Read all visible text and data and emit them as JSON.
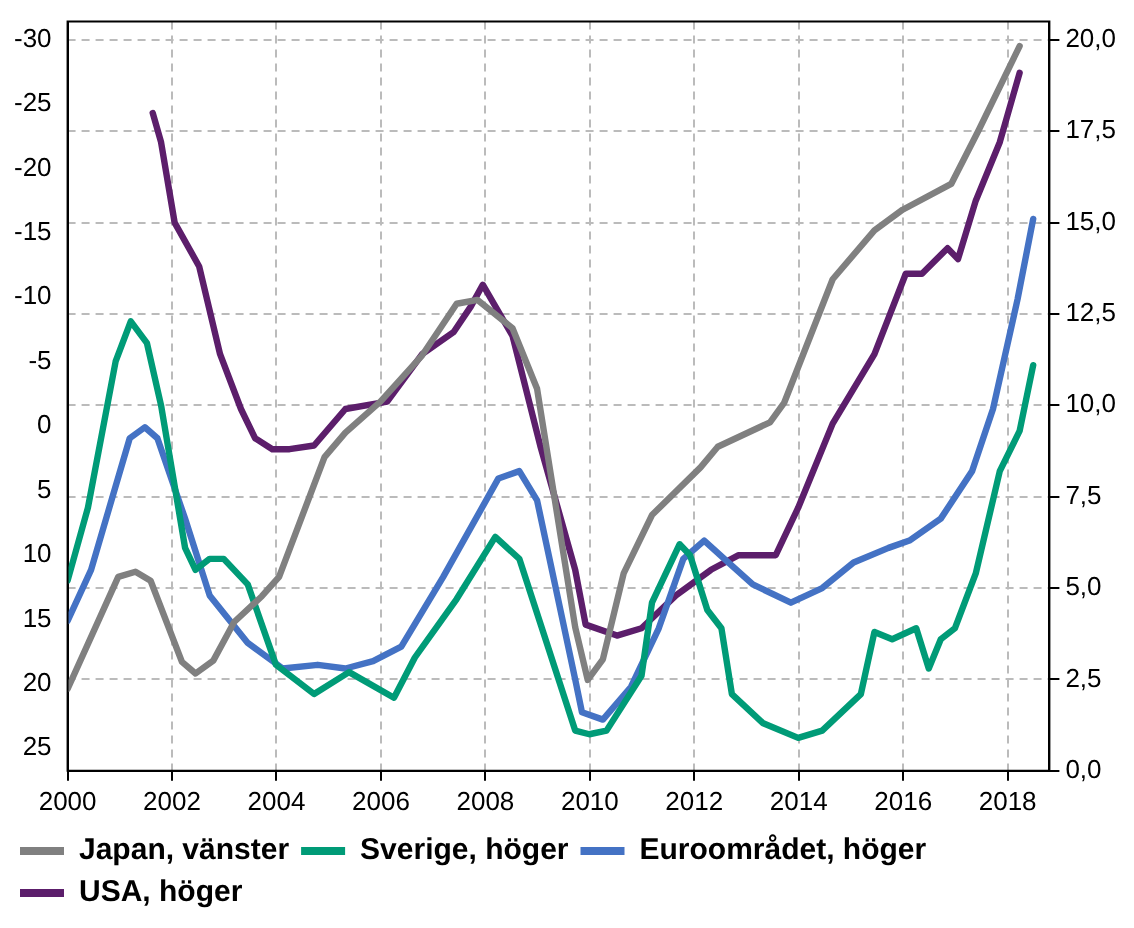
{
  "chart_data": {
    "type": "line",
    "xlim": [
      2000,
      2018.8
    ],
    "xticks": [
      2000,
      2002,
      2004,
      2006,
      2008,
      2010,
      2012,
      2014,
      2016,
      2018
    ],
    "ylim": [
      26.75,
      -31.4
    ],
    "yticks": [
      -30,
      -25,
      -20,
      -15,
      -10,
      -5,
      0,
      5,
      10,
      15,
      20,
      25
    ],
    "y2lim": [
      0,
      20.5
    ],
    "y2ticks": [
      {
        "value": 0,
        "label": "0,0"
      },
      {
        "value": 2.5,
        "label": "2,5"
      },
      {
        "value": 5,
        "label": "5,0"
      },
      {
        "value": 7.5,
        "label": "7,5"
      },
      {
        "value": 10,
        "label": "10,0"
      },
      {
        "value": 12.5,
        "label": "12,5"
      },
      {
        "value": 15,
        "label": "15,0"
      },
      {
        "value": 17.5,
        "label": "17,5"
      },
      {
        "value": 20,
        "label": "20,0"
      }
    ],
    "grid": true,
    "legend": "bottom",
    "marker": "none",
    "line_style": "solid",
    "series": [
      {
        "name": "Japan, vänster",
        "color": "#808080",
        "axis": "y",
        "x": [
          2000.0,
          2000.97,
          2001.3,
          2001.59,
          2002.19,
          2002.45,
          2002.79,
          2003.19,
          2003.72,
          2004.05,
          2004.92,
          2005.32,
          2005.99,
          2006.79,
          2007.45,
          2007.85,
          2008.52,
          2008.99,
          2009.72,
          2009.96,
          2010.25,
          2010.65,
          2011.19,
          2012.12,
          2012.45,
          2013.45,
          2013.72,
          2014.65,
          2015.45,
          2015.99,
          2016.92,
          2017.45,
          2018.23
        ],
        "values": [
          20.4,
          11.7,
          11.3,
          12.0,
          18.3,
          19.2,
          18.2,
          15.2,
          13.2,
          11.7,
          2.4,
          0.5,
          -1.9,
          -5.5,
          -9.5,
          -9.8,
          -7.6,
          -2.9,
          15.6,
          19.7,
          18.1,
          11.4,
          6.9,
          3.2,
          1.6,
          -0.3,
          -1.8,
          -11.4,
          -15.2,
          -16.8,
          -18.8,
          -23.0,
          -29.5
        ]
      },
      {
        "name": "Sverige, höger",
        "color": "#009b77",
        "axis": "y2",
        "x": [
          2000.0,
          2000.39,
          2000.92,
          2001.21,
          2001.52,
          2001.79,
          2002.25,
          2002.45,
          2002.72,
          2002.99,
          2003.45,
          2003.99,
          2004.72,
          2005.39,
          2006.25,
          2006.65,
          2007.45,
          2008.19,
          2008.65,
          2009.72,
          2009.99,
          2010.32,
          2010.99,
          2011.19,
          2011.72,
          2011.92,
          2012.25,
          2012.52,
          2012.72,
          2013.32,
          2013.99,
          2014.45,
          2015.19,
          2015.45,
          2015.79,
          2016.25,
          2016.49,
          2016.72,
          2016.99,
          2017.39,
          2017.85,
          2018.23,
          2018.49
        ],
        "values": [
          5.2,
          7.2,
          11.2,
          12.3,
          11.7,
          10.0,
          6.1,
          5.5,
          5.8,
          5.8,
          5.1,
          2.9,
          2.1,
          2.7,
          2.0,
          3.1,
          4.7,
          6.4,
          5.8,
          1.1,
          1.0,
          1.1,
          2.6,
          4.6,
          6.2,
          5.9,
          4.4,
          3.9,
          2.1,
          1.3,
          0.9,
          1.1,
          2.1,
          3.8,
          3.6,
          3.9,
          2.8,
          3.6,
          3.9,
          5.4,
          8.2,
          9.3,
          11.1
        ]
      },
      {
        "name": "Euroområdet, höger",
        "color": "#4472c4",
        "axis": "y2",
        "x": [
          2000.0,
          2000.45,
          2001.19,
          2001.48,
          2001.72,
          2002.25,
          2002.72,
          2003.45,
          2004.12,
          2004.79,
          2005.32,
          2005.85,
          2006.39,
          2007.19,
          2008.25,
          2008.65,
          2008.99,
          2009.72,
          2009.85,
          2010.25,
          2010.79,
          2011.32,
          2011.79,
          2012.19,
          2012.65,
          2013.12,
          2013.85,
          2014.45,
          2015.05,
          2015.72,
          2016.12,
          2016.72,
          2017.32,
          2017.72,
          2018.19,
          2018.49
        ],
        "values": [
          4.1,
          5.5,
          9.1,
          9.4,
          9.1,
          6.9,
          4.8,
          3.5,
          2.8,
          2.9,
          2.8,
          3.0,
          3.4,
          5.3,
          8.0,
          8.2,
          7.4,
          2.5,
          1.6,
          1.4,
          2.3,
          3.9,
          5.8,
          6.3,
          5.7,
          5.1,
          4.6,
          5.0,
          5.7,
          6.1,
          6.3,
          6.9,
          8.2,
          9.9,
          12.9,
          15.1
        ]
      },
      {
        "name": "USA, höger",
        "color": "#5c1e6b",
        "axis": "y2",
        "x": [
          2001.63,
          2001.79,
          2002.05,
          2002.52,
          2002.92,
          2003.32,
          2003.59,
          2003.92,
          2004.25,
          2004.72,
          2005.32,
          2006.12,
          2006.79,
          2007.39,
          2007.72,
          2007.95,
          2008.52,
          2009.05,
          2009.72,
          2009.92,
          2010.52,
          2010.99,
          2011.65,
          2012.32,
          2012.85,
          2013.56,
          2013.99,
          2014.65,
          2015.45,
          2016.05,
          2016.36,
          2016.85,
          2017.05,
          2017.39,
          2017.85,
          2018.23
        ],
        "values": [
          18.0,
          17.2,
          15.0,
          13.8,
          11.4,
          9.9,
          9.1,
          8.8,
          8.8,
          8.9,
          9.9,
          10.1,
          11.4,
          12.0,
          12.7,
          13.3,
          11.9,
          8.9,
          5.5,
          4.0,
          3.7,
          3.9,
          4.8,
          5.5,
          5.9,
          5.9,
          7.2,
          9.5,
          11.4,
          13.6,
          13.6,
          14.3,
          14.0,
          15.6,
          17.2,
          19.1
        ]
      }
    ]
  }
}
